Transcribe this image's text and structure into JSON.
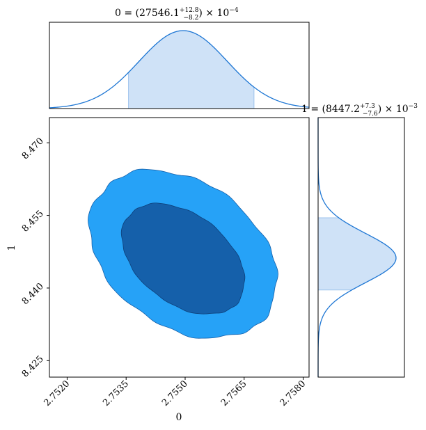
{
  "chart_data": {
    "type": "corner",
    "parameters": [
      "0",
      "1"
    ],
    "titles": {
      "p0": {
        "lhs": "0 = ",
        "central": "27546.1",
        "plus": "+12.8",
        "minus": "−8.2",
        "scale": "× 10",
        "exp": "−4"
      },
      "p1": {
        "lhs": "1 = ",
        "central": "8447.2",
        "plus": "+7.3",
        "minus": "−7.6",
        "scale": "× 10",
        "exp": "−3"
      }
    },
    "axes": {
      "xlabel": "0",
      "ylabel": "1",
      "xlim": [
        2.75155,
        2.75815
      ],
      "ylim": [
        8.4216,
        8.4752
      ],
      "xticks": [
        {
          "value": 2.752,
          "label": "2.7520"
        },
        {
          "value": 2.7535,
          "label": "2.7535"
        },
        {
          "value": 2.755,
          "label": "2.7550"
        },
        {
          "value": 2.7565,
          "label": "2.7565"
        },
        {
          "value": 2.758,
          "label": "2.7580"
        }
      ],
      "yticks": [
        {
          "value": 8.425,
          "label": "8.425"
        },
        {
          "value": 8.44,
          "label": "8.440"
        },
        {
          "value": 8.455,
          "label": "8.455"
        },
        {
          "value": 8.47,
          "label": "8.470"
        }
      ]
    },
    "marginal_x": {
      "param": "0",
      "mean": 2.75495,
      "sd": 0.00112,
      "interval": [
        2.75356,
        2.75466
      ],
      "interval_end": 2.75675
    },
    "marginal_y": {
      "param": "1",
      "mean": 8.4462,
      "sd": 0.0051,
      "interval": [
        8.4396,
        8.4545
      ]
    },
    "contours": [
      {
        "level": "outer",
        "center": [
          2.75495,
          8.447
        ],
        "color": "#2aa3f5"
      },
      {
        "level": "inner",
        "center": [
          2.75495,
          8.446
        ],
        "color": "#1461a8"
      }
    ],
    "colors": {
      "line": "#1f77d4",
      "fill": "#cfe2f7",
      "fill_edge": "#9cc3ec",
      "outer": "#26a2f7",
      "inner": "#1560aa",
      "inner_edge": "#0d3f78"
    }
  }
}
